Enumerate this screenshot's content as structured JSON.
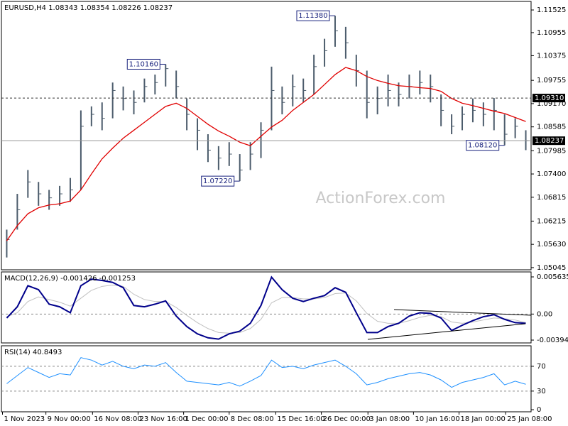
{
  "chart_data": [
    {
      "type": "hlc",
      "title": "EURUSD,H4  1.08343 1.08354 1.08226 1.08237",
      "watermark": "ActionForex.com",
      "x": [
        0,
        1,
        2,
        3,
        4,
        5,
        6,
        7,
        8,
        9,
        10,
        11,
        12,
        13,
        14,
        15,
        16,
        17,
        18,
        19,
        20,
        21,
        22,
        23,
        24,
        25,
        26,
        27,
        28,
        29,
        30,
        31,
        32,
        33,
        34,
        35,
        36,
        37,
        38,
        39,
        40,
        41,
        42,
        43,
        44,
        45,
        46,
        47,
        48,
        49
      ],
      "xlim": [
        -0.5,
        49.5
      ],
      "ylim": [
        1.0499,
        1.1174
      ],
      "color": "#4c5c6c",
      "high": [
        1.06,
        1.069,
        1.075,
        1.072,
        1.07,
        1.071,
        1.073,
        1.09,
        1.091,
        1.092,
        1.097,
        1.096,
        1.095,
        1.098,
        1.099,
        1.1016,
        1.1,
        1.093,
        1.088,
        1.084,
        1.081,
        1.082,
        1.079,
        1.082,
        1.087,
        1.101,
        1.096,
        1.099,
        1.098,
        1.104,
        1.108,
        1.1138,
        1.111,
        1.104,
        1.1,
        1.096,
        1.099,
        1.097,
        1.099,
        1.1,
        1.099,
        1.094,
        1.089,
        1.091,
        1.093,
        1.092,
        1.0931,
        1.089,
        1.088,
        1.085
      ],
      "low": [
        1.053,
        1.06,
        1.068,
        1.066,
        1.065,
        1.066,
        1.067,
        1.07,
        1.086,
        1.085,
        1.088,
        1.09,
        1.089,
        1.092,
        1.094,
        1.096,
        1.093,
        1.085,
        1.08,
        1.077,
        1.075,
        1.076,
        1.0722,
        1.075,
        1.078,
        1.085,
        1.089,
        1.091,
        1.092,
        1.094,
        1.101,
        1.106,
        1.103,
        1.096,
        1.088,
        1.089,
        1.091,
        1.091,
        1.093,
        1.094,
        1.092,
        1.086,
        1.084,
        1.085,
        1.087,
        1.086,
        1.085,
        1.0812,
        1.083,
        1.08
      ],
      "close": [
        1.0575,
        1.065,
        1.072,
        1.069,
        1.068,
        1.069,
        1.07,
        1.086,
        1.089,
        1.088,
        1.095,
        1.093,
        1.092,
        1.096,
        1.097,
        1.1005,
        1.096,
        1.089,
        1.085,
        1.08,
        1.078,
        1.079,
        1.075,
        1.079,
        1.085,
        1.095,
        1.092,
        1.096,
        1.095,
        1.101,
        1.105,
        1.11,
        1.107,
        1.1,
        1.092,
        1.093,
        1.095,
        1.094,
        1.096,
        1.097,
        1.096,
        1.09,
        1.086,
        1.089,
        1.09,
        1.089,
        1.09,
        1.084,
        1.086,
        1.08237
      ],
      "series": [
        {
          "color": "#e00000",
          "values": [
            1.0572,
            1.061,
            1.064,
            1.0655,
            1.0662,
            1.0665,
            1.0672,
            1.07,
            1.074,
            1.0778,
            1.0805,
            1.083,
            1.085,
            1.087,
            1.089,
            1.091,
            1.0918,
            1.0905,
            1.0885,
            1.0865,
            1.0848,
            1.0835,
            1.082,
            1.0811,
            1.0835,
            1.0858,
            1.0875,
            1.09,
            1.092,
            1.094,
            1.0965,
            1.099,
            1.1008,
            1.1,
            1.0985,
            1.0975,
            1.0968,
            1.0962,
            1.096,
            1.0957,
            1.0955,
            1.0948,
            1.093,
            1.0918,
            1.0912,
            1.0905,
            1.0898,
            1.0892,
            1.0882,
            1.0872
          ]
        }
      ],
      "yticks": [
        1.11525,
        1.10955,
        1.10375,
        1.09755,
        {
          "value": 1.0917,
          "label": "1.09170"
        },
        1.08585,
        1.07985,
        {
          "value": 1.074,
          "label": "1.07400"
        },
        1.06815,
        1.06215,
        {
          "value": 1.0563,
          "label": "1.05630"
        },
        1.05045
      ],
      "levels": [
        {
          "value": 1.0931,
          "label": "1.09310",
          "dashed": true
        },
        {
          "value": 1.08237,
          "label": "1.08237",
          "dashed": false
        }
      ],
      "annotations": [
        {
          "text": "1.11380",
          "x": 31,
          "y": 1.1138
        },
        {
          "text": "1.10160",
          "x": 15,
          "y": 1.1016
        },
        {
          "text": "1.07220",
          "x": 22,
          "y": 1.0722
        },
        {
          "text": "1.08120",
          "x": 47,
          "y": 1.0812
        }
      ]
    },
    {
      "type": "line",
      "title": "MACD(12,26,9) -0.001426 -0.001253",
      "x": [
        0,
        1,
        2,
        3,
        4,
        5,
        6,
        7,
        8,
        9,
        10,
        11,
        12,
        13,
        14,
        15,
        16,
        17,
        18,
        19,
        20,
        21,
        22,
        23,
        24,
        25,
        26,
        27,
        28,
        29,
        30,
        31,
        32,
        33,
        34,
        35,
        36,
        37,
        38,
        39,
        40,
        41,
        42,
        43,
        44,
        45,
        46,
        47,
        48,
        49
      ],
      "xlim": [
        -0.5,
        49.5
      ],
      "ylim": [
        -0.00438,
        0.006389
      ],
      "yticks": [
        0.005635,
        {
          "value": 0,
          "label": "0.00"
        },
        -0.003949
      ],
      "hlines": [
        0
      ],
      "series": [
        {
          "color": "#c0c0c0",
          "width": 1,
          "values": [
            -0.0004,
            0.0002,
            0.0019,
            0.0026,
            0.0022,
            0.0018,
            0.0012,
            0.0024,
            0.0036,
            0.0042,
            0.0044,
            0.0042,
            0.003,
            0.0022,
            0.0019,
            0.0019,
            0.001,
            -0.0002,
            -0.0013,
            -0.0022,
            -0.0028,
            -0.0029,
            -0.0028,
            -0.0022,
            -0.0008,
            0.0017,
            0.0025,
            0.0025,
            0.0023,
            0.0023,
            0.0025,
            0.0031,
            0.0032,
            0.002,
            0.0001,
            -0.0011,
            -0.0014,
            -0.0014,
            -0.001,
            -0.0005,
            -0.0002,
            -0.0004,
            -0.0012,
            -0.0014,
            -0.0012,
            -0.0009,
            -0.0006,
            -0.0007,
            -0.0009,
            -0.0013
          ]
        },
        {
          "color": "#00008b",
          "width": 2,
          "values": [
            -0.0006,
            0.0011,
            0.0043,
            0.0037,
            0.0015,
            0.0011,
            0.0002,
            0.0043,
            0.0053,
            0.0051,
            0.0048,
            0.004,
            0.0013,
            0.0011,
            0.0015,
            0.002,
            -0.0003,
            -0.0019,
            -0.003,
            -0.0036,
            -0.0038,
            -0.003,
            -0.0026,
            -0.0014,
            0.0013,
            0.0056,
            0.0037,
            0.0024,
            0.0019,
            0.0024,
            0.0028,
            0.004,
            0.0033,
            0.0002,
            -0.0028,
            -0.0028,
            -0.0019,
            -0.0014,
            -0.0003,
            0.0002,
            0.0001,
            -0.0006,
            -0.0025,
            -0.0017,
            -0.001,
            -0.0004,
            -0.0001,
            -0.0008,
            -0.0013,
            -0.0014
          ]
        }
      ]
    },
    {
      "type": "line",
      "title": "RSI(14) 40.8493",
      "x": [
        0,
        1,
        2,
        3,
        4,
        5,
        6,
        7,
        8,
        9,
        10,
        11,
        12,
        13,
        14,
        15,
        16,
        17,
        18,
        19,
        20,
        21,
        22,
        23,
        24,
        25,
        26,
        27,
        28,
        29,
        30,
        31,
        32,
        33,
        34,
        35,
        36,
        37,
        38,
        39,
        40,
        41,
        42,
        43,
        44,
        45,
        46,
        47,
        48,
        49
      ],
      "xlim": [
        -0.5,
        49.5
      ],
      "ylim": [
        -3.4,
        103.1
      ],
      "yticks": [
        70,
        30,
        0
      ],
      "hlines": [
        70,
        30
      ],
      "xticks": [
        {
          "value": -0.4,
          "label": "1 Nov 2023"
        },
        {
          "value": 3.7,
          "label": "9 Nov 00:00"
        },
        {
          "value": 8.1,
          "label": "16 Nov 08:00"
        },
        {
          "value": 12.4,
          "label": "23 Nov 16:00"
        },
        {
          "value": 16.7,
          "label": "1 Dec 00:00"
        },
        {
          "value": 21.0,
          "label": "8 Dec 08:00"
        },
        {
          "value": 25.4,
          "label": "15 Dec 16:00"
        },
        {
          "value": 29.7,
          "label": "26 Dec 00:00"
        },
        {
          "value": 34.1,
          "label": "3 Jan 08:00"
        },
        {
          "value": 38.4,
          "label": "10 Jan 16:00"
        },
        {
          "value": 42.7,
          "label": "18 Jan 00:00"
        },
        {
          "value": 47.1,
          "label": "25 Jan 08:00"
        }
      ],
      "series": [
        {
          "color": "#1e90ff",
          "width": 1,
          "values": [
            42,
            55,
            68,
            60,
            52,
            58,
            56,
            84,
            80,
            72,
            78,
            70,
            66,
            72,
            70,
            76,
            60,
            46,
            44,
            42,
            40,
            44,
            38,
            46,
            55,
            80,
            68,
            70,
            66,
            72,
            76,
            80,
            70,
            58,
            40,
            44,
            50,
            54,
            58,
            60,
            56,
            48,
            36,
            44,
            48,
            52,
            58,
            40,
            46,
            41
          ]
        }
      ]
    }
  ]
}
